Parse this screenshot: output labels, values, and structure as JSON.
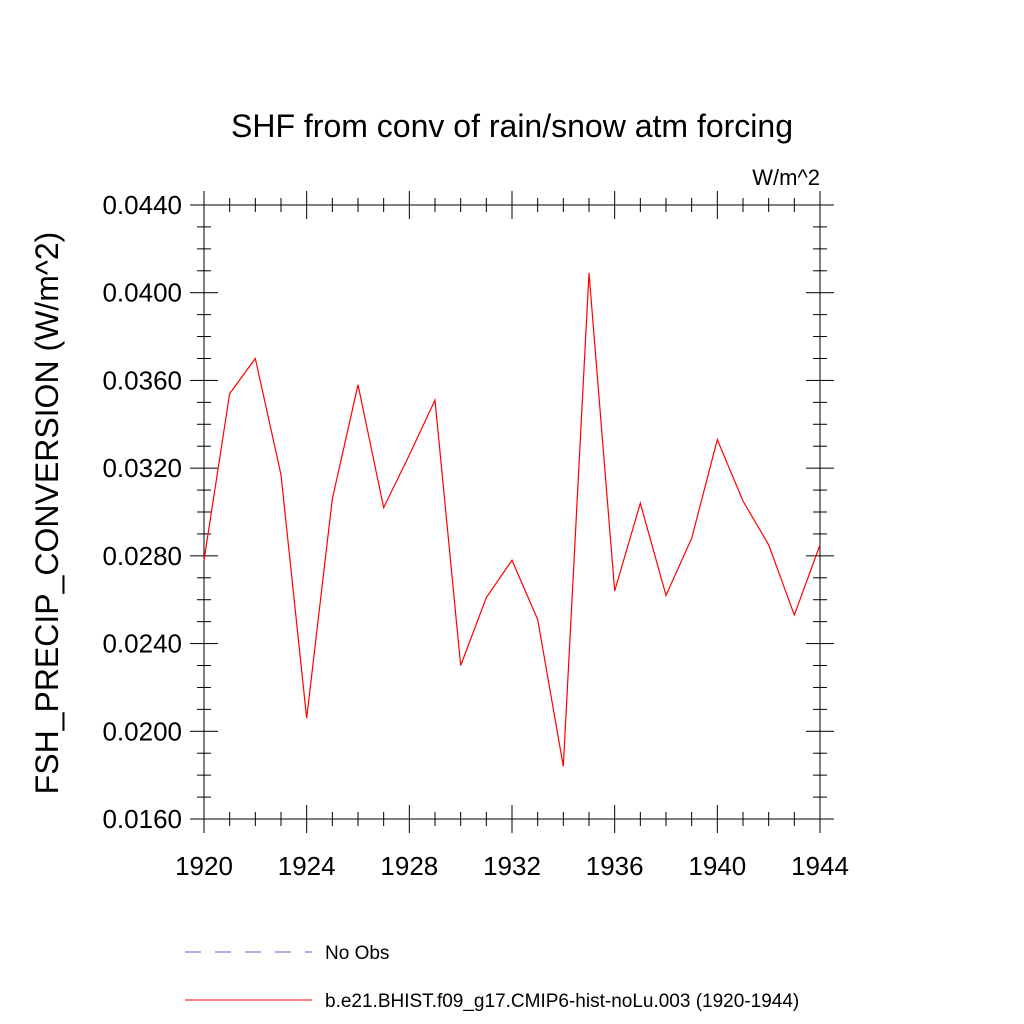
{
  "chart_data": {
    "type": "line",
    "title": "SHF from conv of rain/snow atm forcing",
    "units_label": "W/m^2",
    "xlabel": "",
    "ylabel": "FSH_PRECIP_CONVERSION  (W/m^2)",
    "xlim": [
      1920,
      1944
    ],
    "ylim": [
      0.016,
      0.044
    ],
    "x_ticks": [
      "1920",
      "1924",
      "1928",
      "1932",
      "1936",
      "1940",
      "1944"
    ],
    "y_ticks": [
      "0.0160",
      "0.0200",
      "0.0240",
      "0.0280",
      "0.0320",
      "0.0360",
      "0.0400",
      "0.0440"
    ],
    "grid": false,
    "legend_position": "bottom",
    "series": [
      {
        "name": "b.e21.BHIST.f09_g17.CMIP6-hist-noLu.003 (1920-1944)",
        "color": "#ff0000",
        "dash": "solid",
        "x": [
          1920,
          1921,
          1922,
          1923,
          1924,
          1925,
          1926,
          1927,
          1928,
          1929,
          1930,
          1931,
          1932,
          1933,
          1934,
          1935,
          1936,
          1937,
          1938,
          1939,
          1940,
          1941,
          1942,
          1943,
          1944
        ],
        "y": [
          0.0278,
          0.0354,
          0.037,
          0.0317,
          0.0206,
          0.0306,
          0.0358,
          0.0302,
          0.0326,
          0.0351,
          0.023,
          0.0261,
          0.0278,
          0.0251,
          0.0184,
          0.0409,
          0.0264,
          0.0304,
          0.0262,
          0.0288,
          0.0333,
          0.0305,
          0.0285,
          0.0253,
          0.0285
        ]
      }
    ],
    "legend": [
      {
        "label": "No Obs",
        "color": "#6a5acd",
        "dash": "dashed"
      },
      {
        "label": "b.e21.BHIST.f09_g17.CMIP6-hist-noLu.003 (1920-1944)",
        "color": "#ff0000",
        "dash": "solid"
      }
    ]
  }
}
